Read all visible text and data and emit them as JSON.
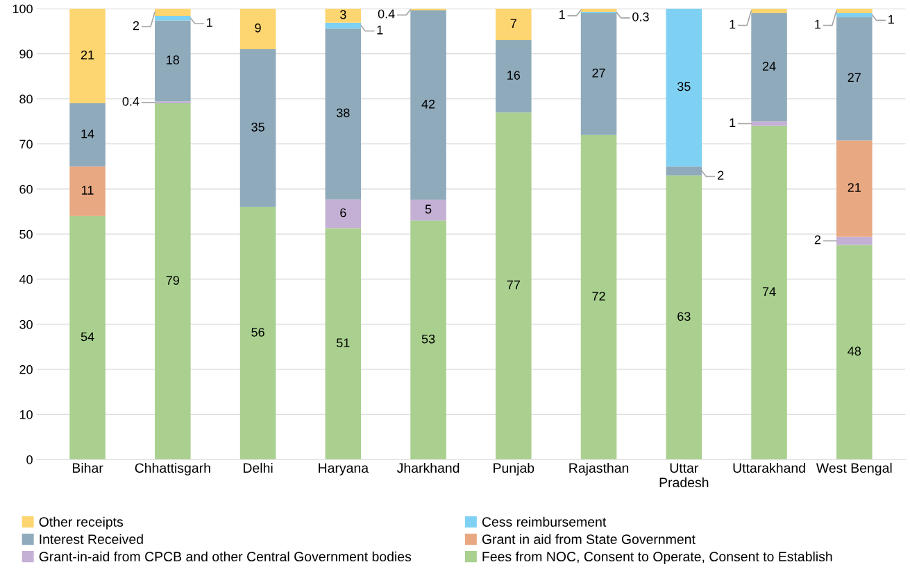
{
  "chart_data": {
    "type": "bar",
    "stacked": true,
    "categories": [
      "Bihar",
      "Chhattisgarh",
      "Delhi",
      "Haryana",
      "Jharkhand",
      "Punjab",
      "Rajasthan",
      "Uttar\nPradesh",
      "Uttarakhand",
      "West Bengal"
    ],
    "series": [
      {
        "name": "Fees from NOC, Consent to Operate, Consent to Establish",
        "color": "#a9d08e",
        "values": [
          54,
          79,
          56,
          51.3,
          53,
          77,
          72,
          63,
          74,
          47.6
        ],
        "value_labels": [
          "54",
          "79",
          "56",
          "51",
          "53",
          "77",
          "72",
          "63",
          "74",
          "48"
        ]
      },
      {
        "name": "Grant-in-aid from CPCB and other Central Government bodies",
        "color": "#c5b0d5",
        "values": [
          0,
          0.4,
          0,
          6.4,
          4.6,
          0,
          0,
          0,
          1,
          1.8
        ],
        "value_labels": [
          null,
          "0.4",
          null,
          "6",
          "5",
          null,
          null,
          null,
          "1",
          "2"
        ]
      },
      {
        "name": "Grant in aid from State Government",
        "color": "#e8a882",
        "values": [
          11,
          0,
          0,
          0,
          0,
          0,
          0,
          0,
          0,
          21.4
        ],
        "value_labels": [
          "11",
          null,
          null,
          null,
          null,
          null,
          null,
          null,
          null,
          "21"
        ]
      },
      {
        "name": "Interest Received",
        "color": "#8faabb",
        "values": [
          14,
          18,
          35,
          37.9,
          42,
          16,
          27,
          2,
          24,
          27.4
        ],
        "value_labels": [
          "14",
          "18",
          "35",
          "38",
          "42",
          "16",
          "27",
          "2",
          "24",
          "27"
        ]
      },
      {
        "name": "Cess reimbursement",
        "color": "#7fd1f4",
        "values": [
          0,
          1,
          0,
          1.3,
          0,
          0,
          0.3,
          35,
          0,
          0.8
        ],
        "value_labels": [
          null,
          "1",
          null,
          "1",
          null,
          null,
          "0.3",
          "35",
          null,
          "1"
        ]
      },
      {
        "name": "Other receipts",
        "color": "#fdd571",
        "values": [
          21,
          1.6,
          9,
          3.1,
          0.4,
          7,
          0.7,
          0,
          1,
          1
        ],
        "value_labels": [
          "21",
          "2",
          "9",
          "3",
          "0.4",
          "7",
          "1",
          null,
          "1",
          "1"
        ]
      }
    ],
    "ylim": [
      0,
      100
    ],
    "yticks": [
      0,
      10,
      20,
      30,
      40,
      50,
      60,
      70,
      80,
      90,
      100
    ],
    "grid": "y",
    "legend": "bottom"
  }
}
